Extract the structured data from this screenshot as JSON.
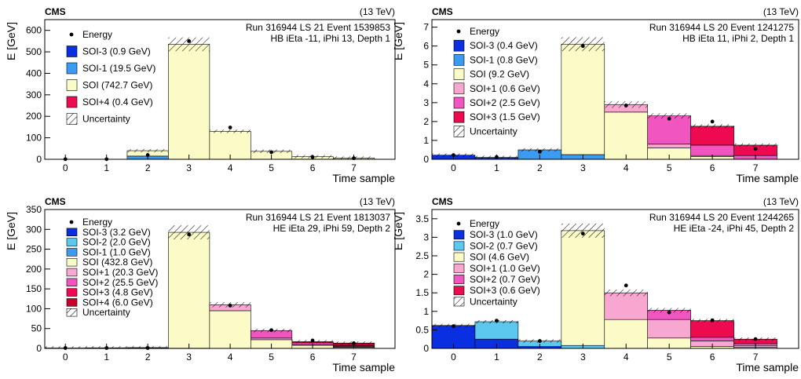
{
  "chart_data": [
    {
      "type": "bar",
      "experiment": "CMS",
      "energy_label": "(13 TeV)",
      "info_line1": "Run 316944  LS 21 Event 1539853",
      "info_line2": "HB iEta -11, iPhi 13, Depth 1",
      "xlabel": "Time sample",
      "ylabel": "E [GeV]",
      "ylim": [
        0,
        650
      ],
      "yticks": [
        0,
        100,
        200,
        300,
        400,
        500,
        600
      ],
      "xticks": [
        "0",
        "1",
        "2",
        "3",
        "4",
        "5",
        "6",
        "7"
      ],
      "energy_marker_label": "Energy",
      "uncertainty_label": "Uncertainty",
      "energy": [
        0.5,
        0.5,
        20,
        550,
        148,
        33,
        10,
        5
      ],
      "series": [
        {
          "name": "SOI-3 (0.9 GeV)",
          "color": "#0a2fe0",
          "values": [
            0,
            0,
            0,
            0,
            0,
            0,
            0,
            0
          ]
        },
        {
          "name": "SOI-1 (19.5 GeV)",
          "color": "#3b9bf0",
          "values": [
            0,
            0,
            15,
            0,
            0,
            0,
            0,
            0
          ]
        },
        {
          "name": "SOI (742.7 GeV)",
          "color": "#fbfbc8",
          "values": [
            0,
            0,
            25,
            535,
            130,
            37,
            12,
            6
          ]
        },
        {
          "name": "SOI+4 (0.4 GeV)",
          "color": "#ee0a50",
          "values": [
            0,
            0,
            0,
            0,
            0,
            0,
            0,
            0
          ]
        }
      ]
    },
    {
      "type": "bar",
      "experiment": "CMS",
      "energy_label": "(13 TeV)",
      "info_line1": "Run 316944  LS 20 Event 1241275",
      "info_line2": "HB iEta 11, iPhi 2, Depth 1",
      "xlabel": "Time sample",
      "ylabel": "E [GeV]",
      "ylim": [
        0,
        7.4
      ],
      "yticks": [
        0,
        1,
        2,
        3,
        4,
        5,
        6,
        7
      ],
      "xticks": [
        "0",
        "1",
        "2",
        "3",
        "4",
        "5",
        "6",
        "7"
      ],
      "energy_marker_label": "Energy",
      "uncertainty_label": "Uncertainty",
      "energy": [
        0.22,
        0.12,
        0.4,
        6.0,
        2.85,
        2.15,
        2.0,
        0.55
      ],
      "series": [
        {
          "name": "SOI-3 (0.4 GeV)",
          "color": "#0a2fe0",
          "values": [
            0.22,
            0.1,
            0,
            0,
            0,
            0,
            0,
            0
          ]
        },
        {
          "name": "SOI-1 (0.8 GeV)",
          "color": "#3b9bf0",
          "values": [
            0,
            0,
            0.5,
            0.25,
            0,
            0,
            0,
            0
          ]
        },
        {
          "name": "SOI (9.2 GeV)",
          "color": "#fbfbc8",
          "values": [
            0,
            0,
            0,
            5.85,
            2.5,
            0.6,
            0.15,
            0
          ]
        },
        {
          "name": "SOI+1 (0.6 GeV)",
          "color": "#f8a8d0",
          "values": [
            0,
            0,
            0,
            0,
            0.4,
            0.2,
            0.05,
            0
          ]
        },
        {
          "name": "SOI+2 (2.5 GeV)",
          "color": "#f055c0",
          "values": [
            0,
            0,
            0,
            0,
            0,
            1.5,
            0.55,
            0.2
          ]
        },
        {
          "name": "SOI+3 (1.5 GeV)",
          "color": "#ee0a50",
          "values": [
            0,
            0,
            0,
            0,
            0,
            0,
            1.0,
            0.55
          ]
        }
      ]
    },
    {
      "type": "bar",
      "experiment": "CMS",
      "energy_label": "(13 TeV)",
      "info_line1": "Run 316944  LS 21 Event 1813037",
      "info_line2": "HE iEta 29, iPhi 59, Depth 2",
      "xlabel": "Time sample",
      "ylabel": "E [GeV]",
      "ylim": [
        0,
        350
      ],
      "yticks": [
        0,
        50,
        100,
        150,
        200,
        250,
        300,
        350
      ],
      "xticks": [
        "0",
        "1",
        "2",
        "3",
        "4",
        "5",
        "6",
        "7"
      ],
      "energy_marker_label": "Energy",
      "uncertainty_label": "Uncertainty",
      "energy": [
        1,
        1,
        1,
        287,
        108,
        46,
        20,
        13
      ],
      "series": [
        {
          "name": "SOI-3 (3.2 GeV)",
          "color": "#0a2fe0",
          "values": [
            1,
            1,
            0.5,
            0,
            0,
            0,
            0,
            0
          ]
        },
        {
          "name": "SOI-2 (2.0 GeV)",
          "color": "#5cc8f0",
          "values": [
            0,
            0.5,
            1,
            0,
            0,
            0,
            0,
            0
          ]
        },
        {
          "name": "SOI-1 (1.0 GeV)",
          "color": "#3b9bf0",
          "values": [
            0,
            0,
            0.5,
            0.5,
            0,
            0,
            0,
            0
          ]
        },
        {
          "name": "SOI (432.8 GeV)",
          "color": "#fbfbc8",
          "values": [
            0,
            0,
            0,
            292,
            95,
            22,
            8,
            3
          ]
        },
        {
          "name": "SOI+1 (20.3 GeV)",
          "color": "#f8a8d0",
          "values": [
            0,
            0,
            0,
            0,
            15,
            4,
            1,
            0.5
          ]
        },
        {
          "name": "SOI+2 (25.5 GeV)",
          "color": "#f055c0",
          "values": [
            0,
            0,
            0,
            0,
            0,
            19,
            5,
            2
          ]
        },
        {
          "name": "SOI+3 (4.8 GeV)",
          "color": "#ee0a50",
          "values": [
            0,
            0,
            0,
            0,
            0,
            0,
            3,
            2
          ]
        },
        {
          "name": "SOI+4 (6.0 GeV)",
          "color": "#c8002a",
          "values": [
            0,
            0,
            0,
            0,
            0,
            0,
            0,
            6
          ]
        }
      ]
    },
    {
      "type": "bar",
      "experiment": "CMS",
      "energy_label": "(13 TeV)",
      "info_line1": "Run 316944  LS 20 Event 1244265",
      "info_line2": "HE iEta -24, iPhi 45, Depth 2",
      "xlabel": "Time sample",
      "ylabel": "E [GeV]",
      "ylim": [
        0,
        3.75
      ],
      "yticks": [
        0,
        0.5,
        1,
        1.5,
        2,
        2.5,
        3,
        3.5
      ],
      "xticks": [
        "0",
        "1",
        "2",
        "3",
        "4",
        "5",
        "6",
        "7"
      ],
      "energy_marker_label": "Energy",
      "uncertainty_label": "Uncertainty",
      "energy": [
        0.6,
        0.75,
        0.2,
        3.1,
        1.7,
        0.97,
        0.76,
        0.25
      ],
      "series": [
        {
          "name": "SOI-3 (1.0 GeV)",
          "color": "#0a2fe0",
          "values": [
            0.62,
            0.25,
            0.05,
            0,
            0,
            0,
            0,
            0
          ]
        },
        {
          "name": "SOI-2 (0.7 GeV)",
          "color": "#5cc8f0",
          "values": [
            0,
            0.47,
            0.15,
            0.08,
            0,
            0,
            0,
            0
          ]
        },
        {
          "name": "SOI (4.6 GeV)",
          "color": "#fbfbc8",
          "values": [
            0,
            0,
            0,
            3.1,
            0.78,
            0.28,
            0.05,
            0.03
          ]
        },
        {
          "name": "SOI+1 (1.0 GeV)",
          "color": "#f8a8d0",
          "values": [
            0,
            0,
            0,
            0,
            0.72,
            0.5,
            0.15,
            0.05
          ]
        },
        {
          "name": "SOI+2 (0.7 GeV)",
          "color": "#f055c0",
          "values": [
            0,
            0,
            0,
            0,
            0,
            0.25,
            0.1,
            0.05
          ]
        },
        {
          "name": "SOI+3 (0.6 GeV)",
          "color": "#ee0a50",
          "values": [
            0,
            0,
            0,
            0,
            0,
            0,
            0.45,
            0.12
          ]
        }
      ]
    }
  ]
}
